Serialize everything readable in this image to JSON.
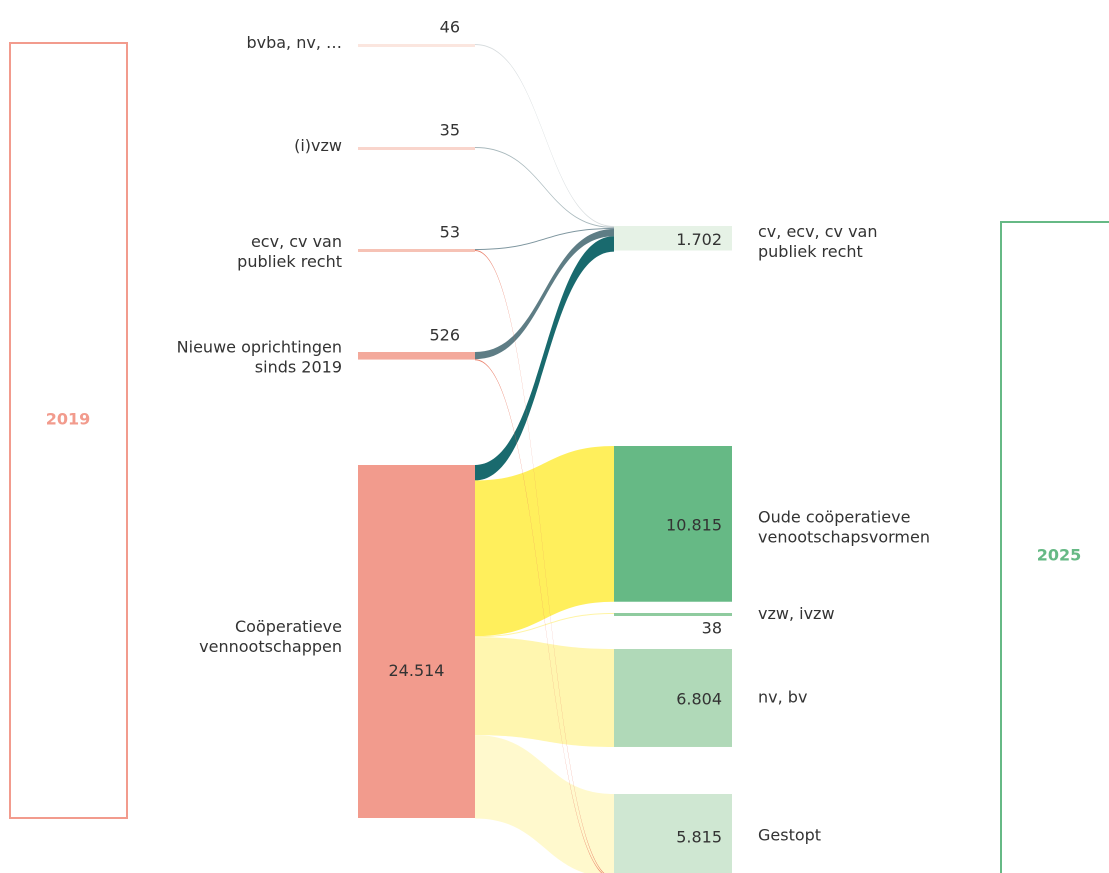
{
  "chart_data": {
    "type": "sankey",
    "stages": [
      {
        "label": "2019",
        "color": "#f29b8d"
      },
      {
        "label": "2025",
        "color": "#66b985"
      }
    ],
    "nodes": [
      {
        "name": [
          "bvba, nv, …"
        ],
        "value": 46,
        "color": "#fbe6df",
        "stage": 0
      },
      {
        "name": [
          "(i)vzw"
        ],
        "value": 35,
        "color": "#f9d5cc",
        "stage": 0
      },
      {
        "name": [
          "ecv, cv van",
          "publiek recht"
        ],
        "value": 53,
        "color": "#f6c2b5",
        "stage": 0
      },
      {
        "name": [
          "Nieuwe oprichtingen",
          "sinds 2019"
        ],
        "value": 526,
        "color": "#f3a99b",
        "stage": 0
      },
      {
        "name": [
          "Coöperatieve",
          "vennootschappen"
        ],
        "value": 24514,
        "value_label": "24.514",
        "color": "#f29b8d",
        "stage": 0
      },
      {
        "name": [
          "cv, ecv, cv van",
          "publiek recht"
        ],
        "value": 1702,
        "value_label": "1.702",
        "color": "#e6f2e6",
        "stage": 1
      },
      {
        "name": [
          "Oude coöperatieve",
          "venootschapsvormen"
        ],
        "value": 10815,
        "value_label": "10.815",
        "color": "#66b985",
        "stage": 1
      },
      {
        "name": [
          "vzw, ivzw"
        ],
        "value": 38,
        "color": "#8fcb9f",
        "stage": 1
      },
      {
        "name": [
          "nv, bv"
        ],
        "value": 6804,
        "value_label": "6.804",
        "color": "#b0d9b8",
        "stage": 1
      },
      {
        "name": [
          "Gestopt"
        ],
        "value": 5815,
        "value_label": "5.815",
        "color": "#cfe7d2",
        "stage": 1
      }
    ],
    "links": [
      {
        "source": 0,
        "target": 5,
        "value": 46,
        "color": "#d3d8da"
      },
      {
        "source": 1,
        "target": 5,
        "value": 35,
        "color": "#9fb0b5"
      },
      {
        "source": 2,
        "target": 5,
        "value": 50,
        "color": "#6f8a93"
      },
      {
        "source": 3,
        "target": 5,
        "value": 500,
        "color": "#4d6f78"
      },
      {
        "source": 4,
        "target": 5,
        "value": 1071,
        "color": "#005a5e"
      },
      {
        "source": 4,
        "target": 6,
        "value": 10815,
        "color": "#ffed4a"
      },
      {
        "source": 4,
        "target": 7,
        "value": 38,
        "color": "#fff39b"
      },
      {
        "source": 4,
        "target": 8,
        "value": 6804,
        "color": "#fff5a6"
      },
      {
        "source": 4,
        "target": 9,
        "value": 5786,
        "color": "#fff8c8"
      },
      {
        "source": 2,
        "target": 9,
        "value": 3,
        "color": "#e8735c"
      },
      {
        "source": 3,
        "target": 9,
        "value": 26,
        "color": "#e8735c"
      }
    ]
  }
}
